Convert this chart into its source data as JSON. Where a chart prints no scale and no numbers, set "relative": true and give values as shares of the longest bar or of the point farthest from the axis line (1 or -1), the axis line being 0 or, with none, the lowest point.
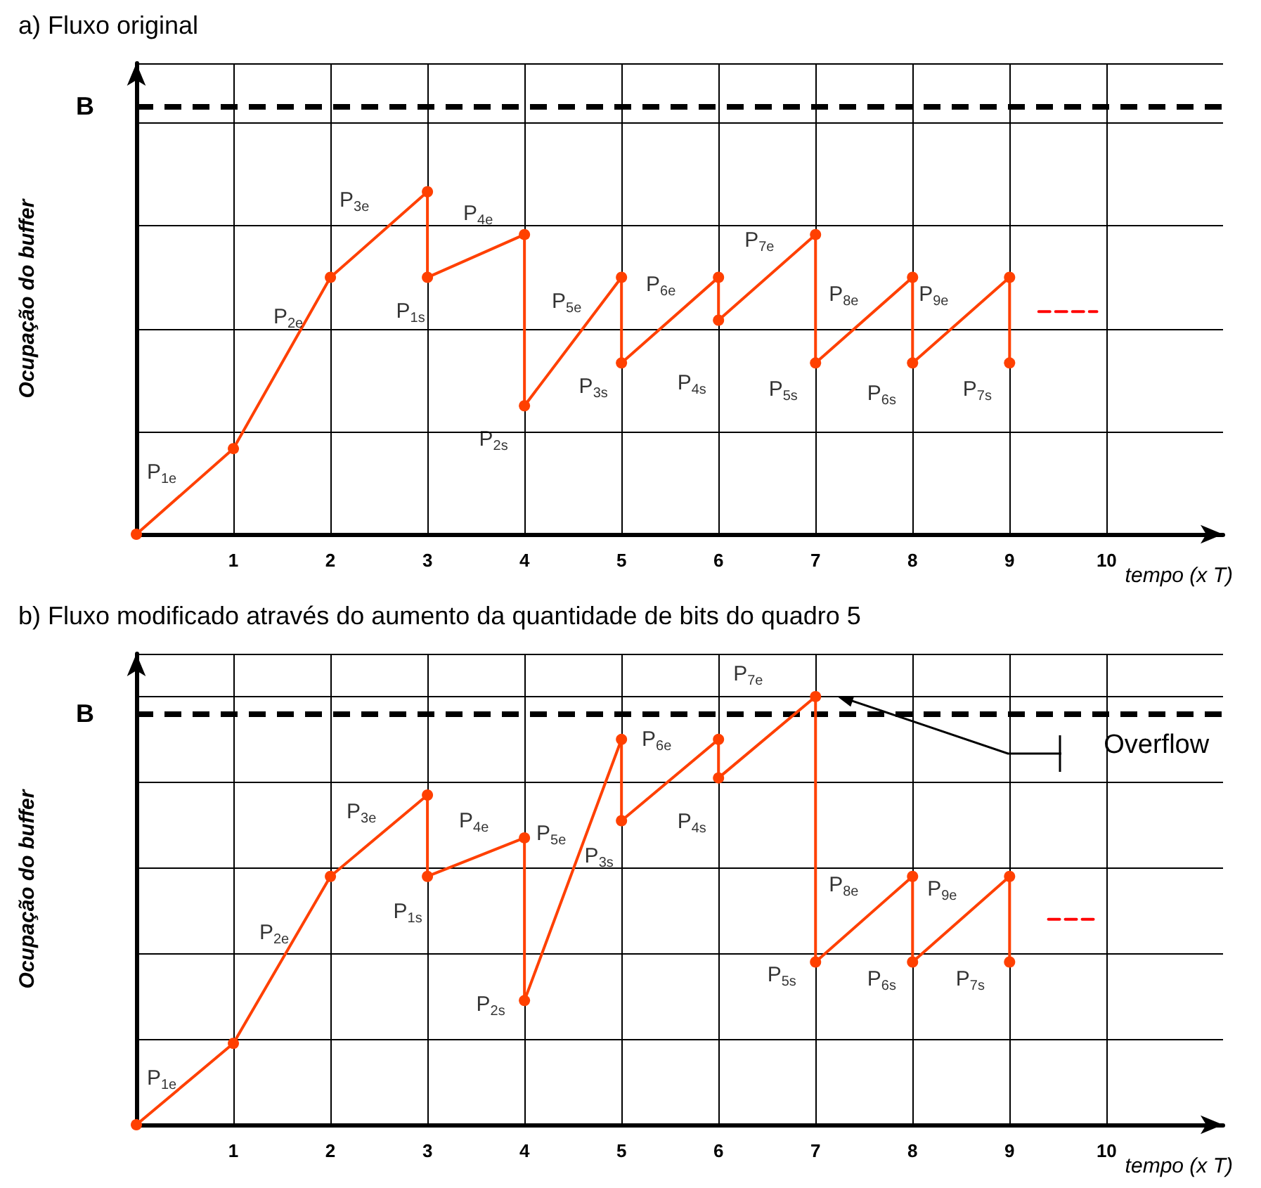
{
  "chart_data": [
    {
      "type": "line",
      "title": "a) Fluxo original",
      "xlabel": "tempo (x T)",
      "ylabel": "Ocupação do buffer",
      "relative": true,
      "grid": true,
      "xlim": [
        0,
        11.2
      ],
      "xticks": [
        {
          "value": 0,
          "label": null
        },
        1,
        2,
        3,
        4,
        5,
        6,
        7,
        8,
        9,
        10
      ],
      "series": [
        {
          "color": "#ff4000",
          "marker": "circle",
          "x": [
            0,
            1,
            2,
            3,
            3,
            4,
            4,
            5,
            5,
            6,
            6,
            7,
            7,
            8,
            8,
            9,
            9
          ],
          "values": [
            0,
            0.25,
            0.75,
            1,
            0.75,
            0.875,
            0.375,
            0.75,
            0.5,
            0.75,
            0.625,
            0.875,
            0.5,
            0.75,
            0.5,
            0.75,
            0.5
          ]
        },
        {
          "color": "#ff0000",
          "marker": "none",
          "line_style": "dashed",
          "x": [
            9.3,
            9.9
          ],
          "values": [
            0.65,
            0.65
          ]
        }
      ],
      "ref_lines": [
        {
          "axis": "y",
          "value": 1.25,
          "label": "B",
          "color": "#000000",
          "line_style": "dashed"
        }
      ],
      "annotations": [
        {
          "text": "P$_{1e}$",
          "x": 1,
          "y": 0.25
        },
        {
          "text": "P$_{2e}$",
          "x": 2,
          "y": 0.75
        },
        {
          "text": "P$_{3e}$",
          "x": 3,
          "y": 1
        },
        {
          "text": "P$_{4e}$",
          "x": 4,
          "y": 0.875
        },
        {
          "text": "P$_{1s}$",
          "x": 3,
          "y": 0.75
        },
        {
          "text": "P$_{5e}$",
          "x": 5,
          "y": 0.75
        },
        {
          "text": "P$_{6e}$",
          "x": 6,
          "y": 0.75
        },
        {
          "text": "P$_{7e}$",
          "x": 7,
          "y": 0.875
        },
        {
          "text": "P$_{2s}$",
          "x": 4,
          "y": 0.375
        },
        {
          "text": "P$_{3s}$",
          "x": 5,
          "y": 0.5
        },
        {
          "text": "P$_{4s}$",
          "x": 6,
          "y": 0.625
        },
        {
          "text": "P$_{5s}$",
          "x": 7,
          "y": 0.5
        },
        {
          "text": "P$_{6s}$",
          "x": 8,
          "y": 0.5
        },
        {
          "text": "P$_{7s}$",
          "x": 9,
          "y": 0.5
        },
        {
          "text": "P$_{8e}$",
          "x": 8,
          "y": 0.75
        },
        {
          "text": "P$_{9e}$",
          "x": 8,
          "y": 0.75
        }
      ]
    },
    {
      "type": "line",
      "title": "b) Fluxo modificado através do aumento da quantidade de bits do quadro 5",
      "xlabel": "tempo (x T)",
      "ylabel": "Ocupação do buffer",
      "relative": true,
      "grid": true,
      "xlim": [
        0,
        11.2
      ],
      "xticks": [
        {
          "value": 0,
          "label": null
        },
        1,
        2,
        3,
        4,
        5,
        6,
        7,
        8,
        9,
        10
      ],
      "series": [
        {
          "color": "#ff4000",
          "marker": "circle",
          "x": [
            0,
            1,
            2,
            3,
            3,
            4,
            4,
            5,
            5,
            6,
            6,
            7,
            7,
            8,
            8,
            9,
            9
          ],
          "values": [
            0,
            0.19,
            0.58,
            0.77,
            0.58,
            0.67,
            0.29,
            0.9,
            0.71,
            0.9,
            0.81,
            1,
            0.38,
            0.58,
            0.38,
            0.58,
            0.38
          ]
        },
        {
          "color": "#ff0000",
          "marker": "none",
          "line_style": "dashed",
          "x": [
            9.4,
            9.9
          ],
          "values": [
            0.48,
            0.48
          ]
        }
      ],
      "ref_lines": [
        {
          "axis": "y",
          "value": 0.96,
          "label": "B",
          "color": "#000000",
          "line_style": "dashed"
        }
      ],
      "annotations": [
        {
          "text": "P$_{1e}$",
          "x": 1,
          "y": 0.19
        },
        {
          "text": "P$_{2e}$",
          "x": 2,
          "y": 0.58
        },
        {
          "text": "P$_{3e}$",
          "x": 3,
          "y": 0.77
        },
        {
          "text": "P$_{4e}$",
          "x": 4,
          "y": 0.67
        },
        {
          "text": "P$_{1s}$",
          "x": 3,
          "y": 0.58
        },
        {
          "text": "P$_{5e}$",
          "x": 4,
          "y": 0.67
        },
        {
          "text": "P$_{3s}$",
          "x": 5,
          "y": 0.71
        },
        {
          "text": "P$_{6e}$",
          "x": 6,
          "y": 0.9
        },
        {
          "text": "P$_{4s}$",
          "x": 6,
          "y": 0.81
        },
        {
          "text": "P$_{7e}$",
          "x": 7,
          "y": 1
        },
        {
          "text": "P$_{2s}$",
          "x": 4,
          "y": 0.29
        },
        {
          "text": "P$_{8e}$",
          "x": 8,
          "y": 0.58
        },
        {
          "text": "P$_{9e}$",
          "x": 9,
          "y": 0.58
        },
        {
          "text": "P$_{5s}$",
          "x": 7,
          "y": 0.38
        },
        {
          "text": "P$_{6s}$",
          "x": 8,
          "y": 0.38
        },
        {
          "text": "P$_{7s}$",
          "x": 9,
          "y": 0.38
        },
        "Overflow"
      ]
    }
  ]
}
